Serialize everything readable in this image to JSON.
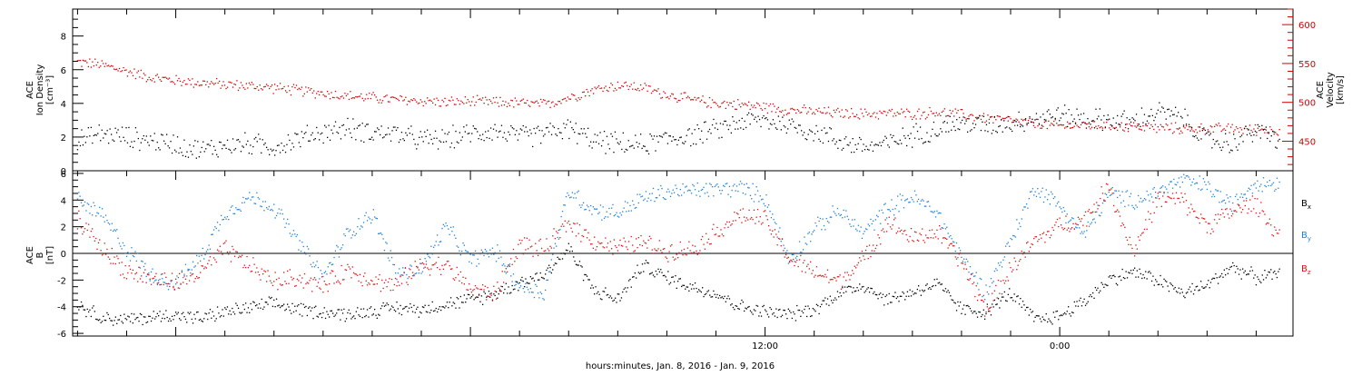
{
  "chart_data": [
    {
      "type": "scatter",
      "panel": "top",
      "left_axis": {
        "label_lines": [
          "ACE",
          "Ion Density",
          "[cm⁻³]"
        ],
        "ticks": [
          0,
          2,
          4,
          6,
          8
        ],
        "ylim": [
          0,
          9.6
        ],
        "color": "#000000"
      },
      "right_axis": {
        "label_lines": [
          "ACE",
          "Velocity",
          "[km/s]"
        ],
        "ticks": [
          450,
          500,
          550,
          600
        ],
        "ylim": [
          412,
          620
        ],
        "color": "#d40000"
      },
      "x_range_hours": [
        -16.2,
        33.5
      ],
      "series": [
        {
          "axis": "left",
          "color": "#000000",
          "x": [
            -16,
            -15,
            -14,
            -13,
            -12,
            -11,
            -10,
            -9,
            -8,
            -7,
            -6,
            -5,
            -4,
            -3,
            -2,
            -1,
            0,
            1,
            2,
            3,
            4,
            5,
            6,
            7,
            8,
            9,
            10,
            11,
            12,
            13,
            14,
            15,
            16,
            17,
            18,
            19,
            20,
            21,
            22,
            23,
            24,
            25,
            26,
            27,
            28,
            29,
            30,
            31,
            32,
            33
          ],
          "y": [
            1.7,
            2.2,
            2.0,
            1.8,
            1.6,
            1.2,
            1.5,
            1.6,
            1.4,
            1.9,
            2.3,
            2.5,
            2.3,
            2.2,
            1.8,
            1.9,
            2.2,
            2.4,
            2.0,
            2.2,
            2.5,
            1.8,
            1.6,
            1.5,
            1.9,
            2.1,
            2.4,
            2.9,
            3.0,
            2.7,
            2.3,
            1.8,
            1.4,
            1.6,
            2.1,
            2.5,
            2.8,
            2.7,
            2.9,
            3.1,
            3.3,
            3.1,
            3.0,
            2.9,
            3.5,
            3.1,
            1.8,
            1.6,
            2.4,
            1.8
          ]
        },
        {
          "axis": "right",
          "color": "#d40000",
          "x": [
            -16,
            -15,
            -14,
            -13,
            -12,
            -11,
            -10,
            -9,
            -8,
            -7,
            -6,
            -5,
            -4,
            -3,
            -2,
            -1,
            0,
            1,
            2,
            3,
            4,
            5,
            6,
            7,
            8,
            9,
            10,
            11,
            12,
            13,
            14,
            15,
            16,
            17,
            18,
            19,
            20,
            21,
            22,
            23,
            24,
            25,
            26,
            27,
            28,
            29,
            30,
            31,
            32,
            33
          ],
          "y": [
            552,
            548,
            540,
            532,
            528,
            525,
            523,
            521,
            519,
            515,
            512,
            508,
            506,
            503,
            502,
            500,
            501,
            500,
            499,
            497,
            506,
            516,
            522,
            519,
            510,
            503,
            499,
            497,
            494,
            490,
            488,
            486,
            485,
            486,
            485,
            487,
            484,
            480,
            476,
            472,
            470,
            471,
            470,
            469,
            467,
            466,
            466,
            466,
            465,
            464
          ]
        }
      ]
    },
    {
      "type": "scatter",
      "panel": "bottom",
      "left_axis": {
        "label_lines": [
          "ACE",
          "B",
          "[nT]"
        ],
        "ticks": [
          -6,
          -4,
          -2,
          0,
          2,
          4,
          6
        ],
        "ylim": [
          -6.2,
          6.2
        ]
      },
      "x_range_hours": [
        -16.2,
        33.5
      ],
      "x_ticks": [
        {
          "hour": 12,
          "label": "12:00"
        },
        {
          "hour": 24,
          "label": "0:00"
        }
      ],
      "xlabel": "hours:minutes, Jan.  8, 2016 - Jan.  9, 2016",
      "series": [
        {
          "name": "Bx",
          "color": "#000000",
          "x": [
            -16,
            -15,
            -14,
            -13,
            -12,
            -11,
            -10,
            -9,
            -8,
            -7,
            -6,
            -5,
            -4,
            -3,
            -2,
            -1,
            0,
            1,
            2,
            3,
            4,
            5,
            6,
            7,
            8,
            9,
            10,
            11,
            12,
            13,
            14,
            15,
            16,
            17,
            18,
            19,
            20,
            21,
            22,
            23,
            24,
            25,
            26,
            27,
            28,
            29,
            30,
            31,
            32,
            33
          ],
          "y": [
            -3.8,
            -4.8,
            -5.0,
            -4.8,
            -4.6,
            -4.9,
            -4.4,
            -4.1,
            -3.8,
            -4.2,
            -4.4,
            -4.6,
            -4.3,
            -4.1,
            -4.2,
            -3.8,
            -3.5,
            -3.0,
            -2.2,
            -1.6,
            0.4,
            -2.7,
            -3.5,
            -0.9,
            -1.8,
            -2.5,
            -3.0,
            -4.0,
            -4.4,
            -4.6,
            -4.2,
            -3.0,
            -2.4,
            -3.5,
            -2.9,
            -2.3,
            -4.2,
            -4.4,
            -3.0,
            -5.0,
            -4.7,
            -3.6,
            -2.0,
            -1.4,
            -2.0,
            -3.0,
            -2.4,
            -1.0,
            -1.8,
            -1.6
          ]
        },
        {
          "name": "By",
          "color": "#1f7fd8",
          "x": [
            -16,
            -15,
            -14,
            -13,
            -12,
            -11,
            -10,
            -9,
            -8,
            -7,
            -6,
            -5,
            -4,
            -3,
            -2,
            -1,
            0,
            1,
            2,
            3,
            4,
            5,
            6,
            7,
            8,
            9,
            10,
            11,
            12,
            13,
            14,
            15,
            16,
            17,
            18,
            19,
            20,
            21,
            22,
            23,
            24,
            25,
            26,
            27,
            28,
            29,
            30,
            31,
            32,
            33
          ],
          "y": [
            4.0,
            2.8,
            0.3,
            -1.6,
            -2.3,
            -0.4,
            3.0,
            4.2,
            3.5,
            0.8,
            -1.8,
            1.5,
            3.0,
            -1.5,
            -1.2,
            2.0,
            -0.5,
            0.2,
            -2.4,
            -3.0,
            4.7,
            3.3,
            3.0,
            4.1,
            4.6,
            4.7,
            4.8,
            4.9,
            4.2,
            -0.5,
            1.8,
            3.2,
            1.5,
            3.4,
            4.2,
            3.1,
            -0.3,
            -2.9,
            0.9,
            5.0,
            3.6,
            1.3,
            4.5,
            3.9,
            4.6,
            5.5,
            5.0,
            3.6,
            5.4,
            5.2
          ]
        },
        {
          "name": "Bz",
          "color": "#e01010",
          "x": [
            -16,
            -15,
            -14,
            -13,
            -12,
            -11,
            -10,
            -9,
            -8,
            -7,
            -6,
            -5,
            -4,
            -3,
            -2,
            -1,
            0,
            1,
            2,
            3,
            4,
            5,
            6,
            7,
            8,
            9,
            10,
            11,
            12,
            13,
            14,
            15,
            16,
            17,
            18,
            19,
            20,
            21,
            22,
            23,
            24,
            25,
            26,
            27,
            28,
            29,
            30,
            31,
            32,
            33
          ],
          "y": [
            2.6,
            0.4,
            -1.3,
            -1.9,
            -2.2,
            -1.5,
            0.3,
            -0.9,
            -2.1,
            -1.8,
            -2.5,
            -1.2,
            -2.0,
            -2.4,
            -0.8,
            -0.9,
            -2.6,
            -3.1,
            0.7,
            0.2,
            2.3,
            1.0,
            0.4,
            0.8,
            0.2,
            0.3,
            1.6,
            2.9,
            2.5,
            -0.4,
            -1.4,
            -2.1,
            -0.5,
            2.4,
            1.1,
            1.6,
            -0.6,
            -4.3,
            -1.2,
            0.9,
            2.1,
            2.5,
            5.0,
            0.1,
            4.1,
            4.0,
            2.1,
            3.1,
            3.8,
            1.1
          ]
        }
      ]
    }
  ]
}
